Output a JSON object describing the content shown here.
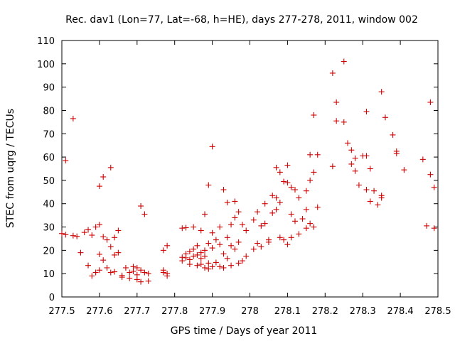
{
  "chart_data": {
    "type": "scatter",
    "title": "Rec. dav1 (Lon=77, Lat=-68, h=HE), days 277-278, 2011, window 002",
    "xlabel": "GPS time / Days of year 2011",
    "ylabel": "STEC from uqrg / TECUs",
    "xlim": [
      277.5,
      278.5
    ],
    "ylim": [
      0,
      110
    ],
    "xticks": [
      "277.5",
      "277.6",
      "277.7",
      "277.8",
      "277.9",
      "278",
      "278.1",
      "278.2",
      "278.3",
      "278.4",
      "278.5"
    ],
    "yticks": [
      "0",
      "10",
      "20",
      "30",
      "40",
      "50",
      "60",
      "70",
      "80",
      "90",
      "100",
      "110"
    ],
    "grid": false,
    "legend": "none",
    "marker": "plus",
    "color": "#d00000",
    "points": [
      [
        277.51,
        58.5
      ],
      [
        277.53,
        76.5
      ],
      [
        277.5,
        27.2
      ],
      [
        277.51,
        26.7
      ],
      [
        277.53,
        26.3
      ],
      [
        277.54,
        26.0
      ],
      [
        277.55,
        19.0
      ],
      [
        277.56,
        27.7
      ],
      [
        277.57,
        13.5
      ],
      [
        277.57,
        28.8
      ],
      [
        277.58,
        26.5
      ],
      [
        277.58,
        9.0
      ],
      [
        277.59,
        30.0
      ],
      [
        277.59,
        10.5
      ],
      [
        277.6,
        47.5
      ],
      [
        277.6,
        18.3
      ],
      [
        277.6,
        31.0
      ],
      [
        277.6,
        11.5
      ],
      [
        277.61,
        51.5
      ],
      [
        277.61,
        25.8
      ],
      [
        277.61,
        15.8
      ],
      [
        277.62,
        12.5
      ],
      [
        277.62,
        24.5
      ],
      [
        277.63,
        55.5
      ],
      [
        277.63,
        21.5
      ],
      [
        277.63,
        10.5
      ],
      [
        277.64,
        25.5
      ],
      [
        277.64,
        18.0
      ],
      [
        277.64,
        10.8
      ],
      [
        277.65,
        19.0
      ],
      [
        277.65,
        28.5
      ],
      [
        277.66,
        9.2
      ],
      [
        277.66,
        8.5
      ],
      [
        277.67,
        12.5
      ],
      [
        277.68,
        10.5
      ],
      [
        277.68,
        8.0
      ],
      [
        277.69,
        11.0
      ],
      [
        277.69,
        13.0
      ],
      [
        277.7,
        9.5
      ],
      [
        277.7,
        7.5
      ],
      [
        277.7,
        12.5
      ],
      [
        277.71,
        39.0
      ],
      [
        277.71,
        11.5
      ],
      [
        277.71,
        6.5
      ],
      [
        277.72,
        10.5
      ],
      [
        277.72,
        35.5
      ],
      [
        277.73,
        10.0
      ],
      [
        277.73,
        6.8
      ],
      [
        277.77,
        20.0
      ],
      [
        277.77,
        11.5
      ],
      [
        277.77,
        10.5
      ],
      [
        277.78,
        22.0
      ],
      [
        277.78,
        10.0
      ],
      [
        277.78,
        9.0
      ],
      [
        277.82,
        29.5
      ],
      [
        277.82,
        17.0
      ],
      [
        277.82,
        15.5
      ],
      [
        277.83,
        29.7
      ],
      [
        277.83,
        18.5
      ],
      [
        277.83,
        16.8
      ],
      [
        277.84,
        14.0
      ],
      [
        277.84,
        19.5
      ],
      [
        277.84,
        16.0
      ],
      [
        277.85,
        30.0
      ],
      [
        277.85,
        20.5
      ],
      [
        277.85,
        17.5
      ],
      [
        277.86,
        13.5
      ],
      [
        277.86,
        18.0
      ],
      [
        277.86,
        22.0
      ],
      [
        277.87,
        28.5
      ],
      [
        277.87,
        19.0
      ],
      [
        277.87,
        16.5
      ],
      [
        277.87,
        14.0
      ],
      [
        277.88,
        35.5
      ],
      [
        277.88,
        20.0
      ],
      [
        277.88,
        12.5
      ],
      [
        277.88,
        17.5
      ],
      [
        277.89,
        48.0
      ],
      [
        277.89,
        23.0
      ],
      [
        277.89,
        14.5
      ],
      [
        277.89,
        12.0
      ],
      [
        277.9,
        64.5
      ],
      [
        277.9,
        27.5
      ],
      [
        277.9,
        21.0
      ],
      [
        277.9,
        13.0
      ],
      [
        277.91,
        24.5
      ],
      [
        277.91,
        14.8
      ],
      [
        277.92,
        30.0
      ],
      [
        277.92,
        22.5
      ],
      [
        277.92,
        13.0
      ],
      [
        277.93,
        46.0
      ],
      [
        277.93,
        18.5
      ],
      [
        277.93,
        12.5
      ],
      [
        277.94,
        40.5
      ],
      [
        277.94,
        25.5
      ],
      [
        277.94,
        16.5
      ],
      [
        277.95,
        31.0
      ],
      [
        277.95,
        22.0
      ],
      [
        277.95,
        13.5
      ],
      [
        277.96,
        41.0
      ],
      [
        277.96,
        34.0
      ],
      [
        277.96,
        20.5
      ],
      [
        277.97,
        36.5
      ],
      [
        277.97,
        23.5
      ],
      [
        277.97,
        14.5
      ],
      [
        277.98,
        31.0
      ],
      [
        277.98,
        15.5
      ],
      [
        277.99,
        28.5
      ],
      [
        277.99,
        17.5
      ],
      [
        278.01,
        33.0
      ],
      [
        278.01,
        20.5
      ],
      [
        278.02,
        36.5
      ],
      [
        278.02,
        23.0
      ],
      [
        278.03,
        30.5
      ],
      [
        278.03,
        21.5
      ],
      [
        278.04,
        40.0
      ],
      [
        278.04,
        31.5
      ],
      [
        278.05,
        24.5
      ],
      [
        278.05,
        23.5
      ],
      [
        278.06,
        43.5
      ],
      [
        278.06,
        36.0
      ],
      [
        278.07,
        55.5
      ],
      [
        278.07,
        42.5
      ],
      [
        278.07,
        37.5
      ],
      [
        278.08,
        53.5
      ],
      [
        278.08,
        40.5
      ],
      [
        278.08,
        25.5
      ],
      [
        278.09,
        49.5
      ],
      [
        278.09,
        24.5
      ],
      [
        278.1,
        56.5
      ],
      [
        278.1,
        49.0
      ],
      [
        278.1,
        22.5
      ],
      [
        278.11,
        47.0
      ],
      [
        278.11,
        35.5
      ],
      [
        278.11,
        25.5
      ],
      [
        278.12,
        46.0
      ],
      [
        278.12,
        32.5
      ],
      [
        278.13,
        42.5
      ],
      [
        278.13,
        27.0
      ],
      [
        278.14,
        33.5
      ],
      [
        278.15,
        45.5
      ],
      [
        278.15,
        37.5
      ],
      [
        278.15,
        29.5
      ],
      [
        278.16,
        61.0
      ],
      [
        278.16,
        50.0
      ],
      [
        278.16,
        31.5
      ],
      [
        278.17,
        78.0
      ],
      [
        278.17,
        53.5
      ],
      [
        278.17,
        30.0
      ],
      [
        278.18,
        61.0
      ],
      [
        278.18,
        38.5
      ],
      [
        278.22,
        96.0
      ],
      [
        278.22,
        56.0
      ],
      [
        278.23,
        83.5
      ],
      [
        278.23,
        75.5
      ],
      [
        278.25,
        101.0
      ],
      [
        278.25,
        75.0
      ],
      [
        278.26,
        66.0
      ],
      [
        278.27,
        63.0
      ],
      [
        278.27,
        57.0
      ],
      [
        278.28,
        59.5
      ],
      [
        278.28,
        54.0
      ],
      [
        278.29,
        48.0
      ],
      [
        278.3,
        60.5
      ],
      [
        278.31,
        79.5
      ],
      [
        278.31,
        60.5
      ],
      [
        278.31,
        46.0
      ],
      [
        278.32,
        55.0
      ],
      [
        278.32,
        41.0
      ],
      [
        278.33,
        45.5
      ],
      [
        278.34,
        39.5
      ],
      [
        278.35,
        88.0
      ],
      [
        278.35,
        43.5
      ],
      [
        278.35,
        42.5
      ],
      [
        278.36,
        77.0
      ],
      [
        278.38,
        69.5
      ],
      [
        278.39,
        62.5
      ],
      [
        278.39,
        61.5
      ],
      [
        278.41,
        54.5
      ],
      [
        278.46,
        59.0
      ],
      [
        278.47,
        30.5
      ],
      [
        278.48,
        83.5
      ],
      [
        278.48,
        52.5
      ],
      [
        278.49,
        47.0
      ],
      [
        278.49,
        29.5
      ]
    ]
  }
}
